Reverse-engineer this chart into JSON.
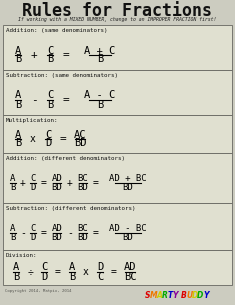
{
  "title": "Rules for Fractions",
  "subtitle": "If working with a MIXED NUMBER, change to an IMPROPER FRACTION first!",
  "bg_color": "#ccccc0",
  "box_bg": "#e0e0d0",
  "border_color": "#888880",
  "title_color": "#111111",
  "section_labels": [
    "Addition: (same denominators)",
    "Subtraction: (same denominators)",
    "Multiplication:",
    "Addition: (different denominators)",
    "Subtraction: (different denominators)",
    "Division:"
  ],
  "smarty_colors": [
    "#dd0000",
    "#ee7700",
    "#cccc00",
    "#00aa00",
    "#0000cc",
    "#880099",
    "#dd0000",
    "#ee7700",
    "#cccc00",
    "#00aa00",
    "#0000cc"
  ],
  "smarty_text": "SMARTYBUDDY",
  "copyright": "Copyright 2014, Matpix, 2014"
}
